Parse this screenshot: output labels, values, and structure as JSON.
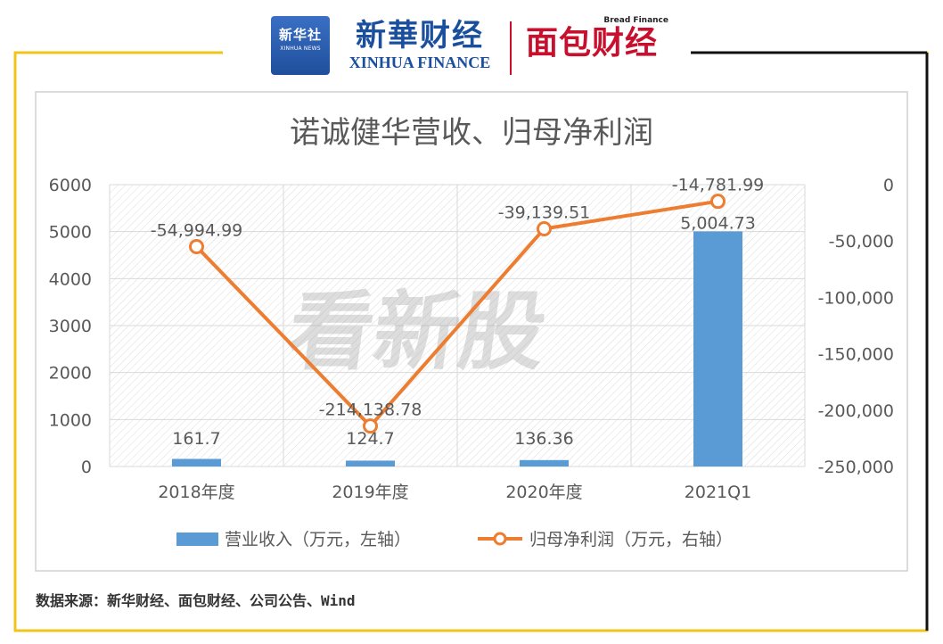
{
  "logos": {
    "xinhua_badge_cn": "新华社",
    "xinhua_badge_en": "XINHUA NEWS",
    "xinhua_finance_cn": "新華财经",
    "xinhua_finance_en": "XINHUA FINANCE",
    "bread_finance_en": "Bread Finance",
    "bread_finance_cn": "面包财经"
  },
  "watermark": "看新股",
  "source": "数据来源：新华财经、面包财经、公司公告、Wind",
  "colors": {
    "bar": "#5b9bd5",
    "line": "#ed7d31",
    "frame": "#f0c419",
    "grid": "#d9d9d9",
    "text": "#595959"
  },
  "chart_data": {
    "type": "bar+line",
    "title": "诺诚健华营收、归母净利润",
    "categories": [
      "2018年度",
      "2019年度",
      "2020年度",
      "2021Q1"
    ],
    "series": [
      {
        "name": "营业收入（万元，左轴）",
        "type": "bar",
        "axis": "left",
        "values": [
          161.7,
          124.7,
          136.36,
          5004.73
        ],
        "labels": [
          "161.7",
          "124.7",
          "136.36",
          "5,004.73"
        ]
      },
      {
        "name": "归母净利润（万元，右轴）",
        "type": "line",
        "axis": "right",
        "values": [
          -54994.99,
          -214138.78,
          -39139.51,
          -14781.99
        ],
        "labels": [
          "-54,994.99",
          "-214,138.78",
          "-39,139.51",
          "-14,781.99"
        ]
      }
    ],
    "y_left": {
      "min": 0,
      "max": 6000,
      "ticks": [
        0,
        1000,
        2000,
        3000,
        4000,
        5000,
        6000
      ],
      "tick_labels": [
        "0",
        "1000",
        "2000",
        "3000",
        "4000",
        "5000",
        "6000"
      ]
    },
    "y_right": {
      "min": -250000,
      "max": 0,
      "ticks": [
        0,
        -50000,
        -100000,
        -150000,
        -200000,
        -250000
      ],
      "tick_labels": [
        "0",
        "-50,000",
        "-100,000",
        "-150,000",
        "-200,000",
        "-250,000"
      ]
    },
    "legend_position": "bottom",
    "grid": true
  }
}
